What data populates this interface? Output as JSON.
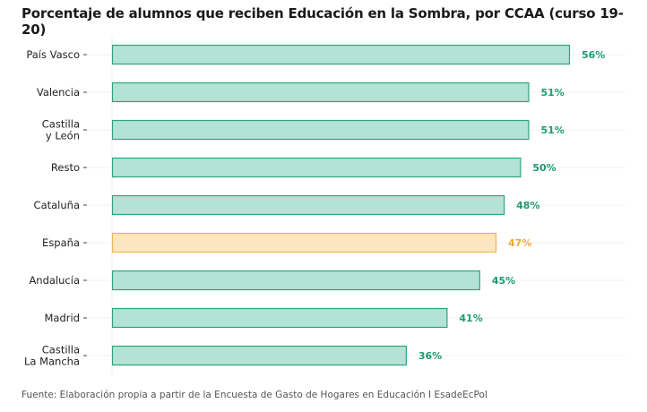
{
  "chart_data": {
    "type": "bar",
    "orientation": "horizontal",
    "title": "Porcentaje de alumnos que reciben Educación en la Sombra, por CCAA (curso 19-20)",
    "xlabel": "",
    "ylabel": "",
    "xlim": [
      0,
      56
    ],
    "grid": true,
    "categories": [
      [
        "País Vasco"
      ],
      [
        "Valencia"
      ],
      [
        "Castilla",
        "y León"
      ],
      [
        "Resto"
      ],
      [
        "Cataluña"
      ],
      [
        "España"
      ],
      [
        "Andalucía"
      ],
      [
        "Madrid"
      ],
      [
        "Castilla",
        "La Mancha"
      ]
    ],
    "values": [
      56,
      51,
      51,
      50,
      48,
      47,
      45,
      41,
      36
    ],
    "labels": [
      "56%",
      "51%",
      "51%",
      "50%",
      "48%",
      "47%",
      "45%",
      "41%",
      "36%"
    ],
    "highlight": [
      false,
      false,
      false,
      false,
      false,
      true,
      false,
      false,
      false
    ],
    "colors": {
      "default_fill": "#b3e3d5",
      "default_stroke": "#2aa57e",
      "default_text": "#1e9a72",
      "highlight_fill": "#fbe5c2",
      "highlight_stroke": "#f0b556",
      "highlight_text": "#f0a83a"
    }
  },
  "source": "Fuente: Elaboración propia a partir de la Encuesta de Gasto de Hogares en Educación I EsadeEcPol"
}
